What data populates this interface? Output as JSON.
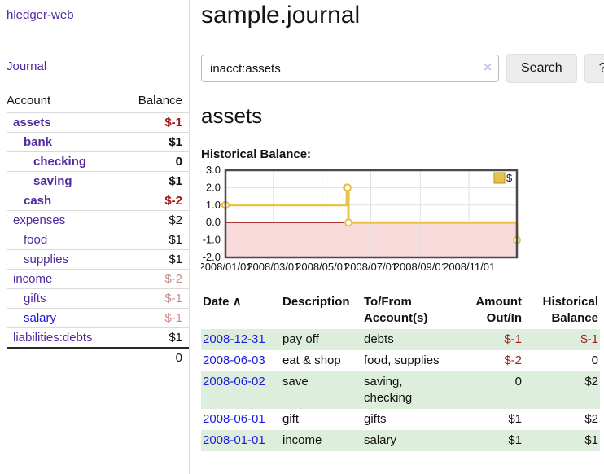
{
  "app": {
    "title": "hledger-web"
  },
  "sidebar": {
    "journal_label": "Journal",
    "headers": {
      "account": "Account",
      "balance": "Balance"
    },
    "accounts": [
      {
        "name": "assets",
        "balance": "$-1",
        "depth": 1,
        "in_current_view": true
      },
      {
        "name": "bank",
        "balance": "$1",
        "depth": 2,
        "in_current_view": true
      },
      {
        "name": "checking",
        "balance": "0",
        "depth": 3,
        "in_current_view": true
      },
      {
        "name": "saving",
        "balance": "$1",
        "depth": 3,
        "in_current_view": true
      },
      {
        "name": "cash",
        "balance": "$-2",
        "depth": 2,
        "in_current_view": true
      },
      {
        "name": "expenses",
        "balance": "$2",
        "depth": 1,
        "in_current_view": false
      },
      {
        "name": "food",
        "balance": "$1",
        "depth": 2,
        "in_current_view": false
      },
      {
        "name": "supplies",
        "balance": "$1",
        "depth": 2,
        "in_current_view": false
      },
      {
        "name": "income",
        "balance": "$-2",
        "depth": 1,
        "in_current_view": false
      },
      {
        "name": "gifts",
        "balance": "$-1",
        "depth": 2,
        "in_current_view": false
      },
      {
        "name": "salary",
        "balance": "$-1",
        "depth": 2,
        "in_current_view": false
      },
      {
        "name": "liabilities:debts",
        "balance": "$1",
        "depth": 1,
        "in_current_view": false
      }
    ],
    "total": "0"
  },
  "main": {
    "title": "sample.journal",
    "search": {
      "value": "inacct:assets",
      "clear_icon": "×",
      "button_label": "Search",
      "help_label": "?"
    },
    "account_heading": "assets",
    "chart_label": "Historical Balance:"
  },
  "chart_data": {
    "type": "line",
    "title": "Historical Balance:",
    "step": true,
    "legend": {
      "label": "$",
      "position": "top-right"
    },
    "x_range": [
      "2008/01/01",
      "2008/12/31"
    ],
    "ylim": [
      -2,
      3
    ],
    "x_tick_labels": [
      "2008/01/01",
      "2008/03/01",
      "2008/05/01",
      "2008/07/01",
      "2008/09/01",
      "2008/11/01"
    ],
    "y_tick_values": [
      3,
      2,
      1,
      0,
      -1,
      -2
    ],
    "y_tick_labels": [
      "3.0",
      "2.0",
      "1.0",
      "0.0",
      "-1.0",
      "-2.0"
    ],
    "series": [
      {
        "name": "$",
        "points": [
          [
            "2008/01/01",
            1
          ],
          [
            "2008/06/01",
            2
          ],
          [
            "2008/06/02",
            2
          ],
          [
            "2008/06/03",
            0
          ],
          [
            "2008/12/31",
            -1
          ]
        ]
      }
    ],
    "colors": {
      "line": "#e9c24a",
      "marker_fill": "#ffffff",
      "negative_region_fill": "#fadbdb",
      "zero_line": "#990000",
      "grid": "#e0e0e0",
      "border": "#4a4a4a"
    }
  },
  "transactions": {
    "sort_icon": "∧",
    "headers": {
      "date": "Date",
      "description": "Description",
      "accounts": "To/From\nAccount(s)",
      "amount": "Amount\nOut/In",
      "balance": "Historical\nBalance"
    },
    "rows": [
      {
        "date": "2008-12-31",
        "description": "pay off",
        "accounts": "debts",
        "amount": "$-1",
        "balance": "$-1"
      },
      {
        "date": "2008-06-03",
        "description": "eat & shop",
        "accounts": "food, supplies",
        "amount": "$-2",
        "balance": "0"
      },
      {
        "date": "2008-06-02",
        "description": "save",
        "accounts": "saving,\nchecking",
        "amount": "0",
        "balance": "$2"
      },
      {
        "date": "2008-06-01",
        "description": "gift",
        "accounts": "gifts",
        "amount": "$1",
        "balance": "$2"
      },
      {
        "date": "2008-01-01",
        "description": "income",
        "accounts": "salary",
        "amount": "$1",
        "balance": "$1"
      }
    ]
  }
}
